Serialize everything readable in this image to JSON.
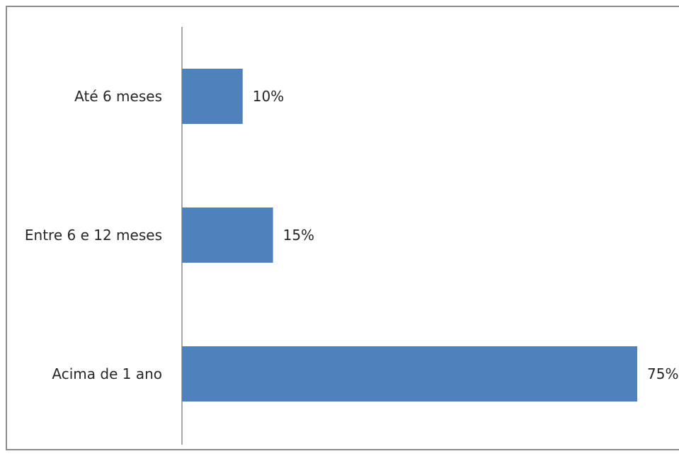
{
  "chart_data": {
    "type": "bar",
    "orientation": "horizontal",
    "categories": [
      "Até 6 meses",
      "Entre 6 e 12 meses",
      "Acima de 1 ano"
    ],
    "values": [
      10,
      15,
      75
    ],
    "value_labels": [
      "10%",
      "15%",
      "75%"
    ],
    "xlim": [
      0,
      75
    ],
    "grid": false,
    "legend": "none",
    "colors": {
      "bar": "#4f81bd",
      "axis": "#8c8c8c",
      "text": "#262626"
    }
  }
}
